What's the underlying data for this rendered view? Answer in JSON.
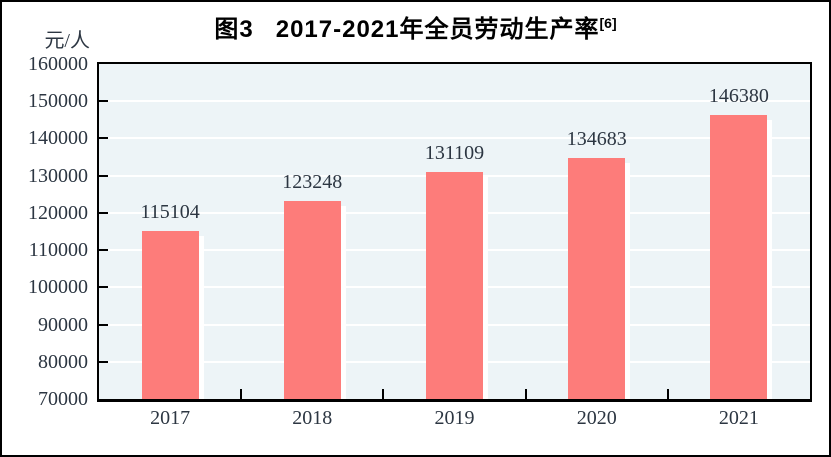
{
  "figure": {
    "title": {
      "prefix": "图3",
      "main": "2017-2021年全员劳动生产率",
      "superscript": "[6]"
    },
    "unit_label": "元/人"
  },
  "chart_data": {
    "type": "bar",
    "title": "图3 2017-2021年全员劳动生产率[6]",
    "categories": [
      "2017",
      "2018",
      "2019",
      "2020",
      "2021"
    ],
    "values": [
      115104,
      123248,
      131109,
      134683,
      146380
    ],
    "xlabel": "",
    "ylabel": "元/人",
    "ylim": [
      70000,
      160000
    ],
    "ytick_step": 10000,
    "grid": true,
    "legend": "none",
    "colors": {
      "bar": "#fd7c7a",
      "bar_shadow": "#ffffff",
      "plot_background": "#edf4f7",
      "gridline": "#ffffff",
      "axis": "#000000",
      "text": "#2c3642",
      "title_text": "#000000"
    }
  }
}
